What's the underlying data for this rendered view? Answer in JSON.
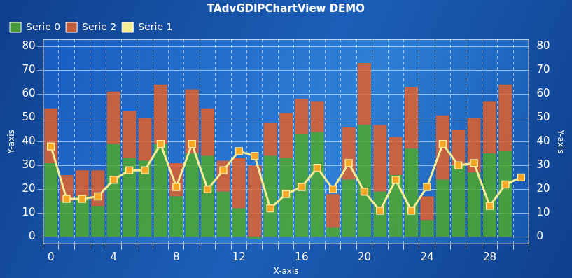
{
  "chart_data": {
    "type": "bar",
    "title": "TAdvGDIPChartView DEMO",
    "x_label": "X-axis",
    "y_label": "Y-axis",
    "y2_label": "Y-axis",
    "categories": [
      "0",
      null,
      null,
      null,
      "4",
      null,
      null,
      null,
      "8",
      null,
      null,
      null,
      "12",
      null,
      null,
      null,
      "16",
      null,
      null,
      null,
      "20",
      null,
      null,
      null,
      "24",
      null,
      null,
      null,
      "28",
      null,
      null
    ],
    "stacked": true,
    "grid": true,
    "legend": "top-left",
    "ylim": [
      -3,
      83
    ],
    "yticks": [
      0,
      10,
      20,
      30,
      40,
      50,
      60,
      70,
      80
    ],
    "y2lim": [
      -3,
      83
    ],
    "y2ticks": [
      0,
      10,
      20,
      30,
      40,
      50,
      60,
      70,
      80
    ],
    "series": [
      {
        "name": "Serie 0",
        "type": "bar",
        "color": "#4fa82c",
        "values": [
          31,
          15,
          17,
          13,
          39,
          33,
          32,
          39,
          17,
          35,
          34,
          19,
          12,
          -1,
          34,
          33,
          43,
          44,
          4,
          24,
          47,
          19,
          26,
          37,
          7,
          24,
          30,
          27,
          35,
          36,
          null
        ]
      },
      {
        "name": "Serie 2",
        "type": "bar",
        "color": "#e0602a",
        "values": [
          23,
          11,
          11,
          15,
          22,
          20,
          18,
          25,
          14,
          27,
          20,
          13,
          21,
          30,
          14,
          19,
          15,
          13,
          14,
          22,
          26,
          28,
          16,
          26,
          10,
          27,
          15,
          23,
          22,
          28,
          null
        ]
      },
      {
        "name": "Serie 1",
        "type": "line",
        "color": "#f7ec96",
        "marker": "square",
        "values": [
          38,
          16,
          16,
          17,
          24,
          28,
          28,
          39,
          21,
          39,
          20,
          28,
          36,
          34,
          12,
          18,
          21,
          29,
          20,
          31,
          19,
          11,
          24,
          11,
          21,
          39,
          30,
          31,
          13,
          22,
          25
        ]
      }
    ]
  }
}
